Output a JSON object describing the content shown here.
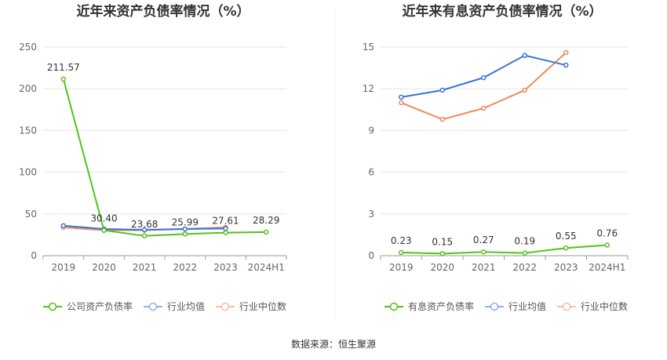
{
  "footer": {
    "source": "数据来源：恒生聚源"
  },
  "chart_data": [
    {
      "type": "line",
      "title": "近年来资产负债率情况（%）",
      "categories": [
        "2019",
        "2020",
        "2021",
        "2022",
        "2023",
        "2024H1"
      ],
      "ylim": [
        0,
        250
      ],
      "yticks": [
        0,
        50,
        100,
        150,
        200,
        250
      ],
      "grid": true,
      "legend_position": "bottom",
      "series": [
        {
          "name": "公司资产负债率",
          "color": "#52c41a",
          "values": [
            211.57,
            30.4,
            23.68,
            25.99,
            27.61,
            28.29
          ],
          "labels": [
            "211.57",
            "30.40",
            "23.68",
            "25.99",
            "27.61",
            "28.29"
          ]
        },
        {
          "name": "行业均值",
          "color": "#3b73d9",
          "values": [
            36.0,
            32.0,
            31.0,
            32.0,
            32.5,
            null
          ]
        },
        {
          "name": "行业中位数",
          "color": "#f08a5d",
          "values": [
            34.0,
            30.5,
            30.5,
            32.0,
            34.0,
            null
          ]
        }
      ]
    },
    {
      "type": "line",
      "title": "近年来有息资产负债率情况（%）",
      "categories": [
        "2019",
        "2020",
        "2021",
        "2022",
        "2023",
        "2024H1"
      ],
      "ylim": [
        0,
        15
      ],
      "yticks": [
        0,
        3,
        6,
        9,
        12,
        15
      ],
      "grid": true,
      "legend_position": "bottom",
      "series": [
        {
          "name": "有息资产负债率",
          "color": "#52c41a",
          "values": [
            0.23,
            0.15,
            0.27,
            0.19,
            0.55,
            0.76
          ],
          "labels": [
            "0.23",
            "0.15",
            "0.27",
            "0.19",
            "0.55",
            "0.76"
          ]
        },
        {
          "name": "行业均值",
          "color": "#3b73d9",
          "values": [
            11.4,
            11.9,
            12.8,
            14.4,
            13.7,
            null
          ]
        },
        {
          "name": "行业中位数",
          "color": "#f08a5d",
          "values": [
            11.0,
            9.8,
            10.6,
            11.9,
            14.6,
            null
          ]
        }
      ]
    }
  ]
}
